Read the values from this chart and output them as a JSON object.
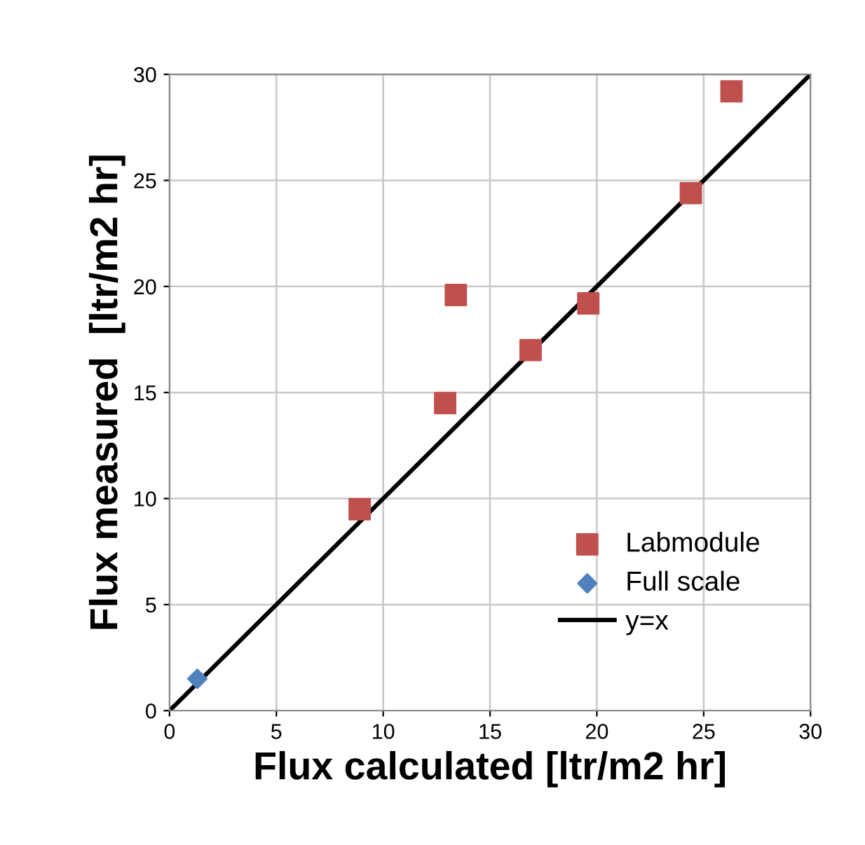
{
  "chart_data": {
    "type": "scatter",
    "xlabel": "Flux calculated [ltr/m2 hr]",
    "ylabel": "Flux measured  [ltr/m2 hr]",
    "xlim": [
      0,
      30
    ],
    "ylim": [
      0,
      30
    ],
    "xticks": [
      0,
      5,
      10,
      15,
      20,
      25,
      30
    ],
    "yticks": [
      0,
      5,
      10,
      15,
      20,
      25,
      30
    ],
    "grid": true,
    "legend": "bottom right",
    "series": [
      {
        "name": "Labmodule",
        "marker": "square",
        "color": "#c0504d",
        "x": [
          8.9,
          12.9,
          13.4,
          16.9,
          19.6,
          24.4,
          26.3
        ],
        "values": [
          9.5,
          14.5,
          19.6,
          17.0,
          19.2,
          24.4,
          29.2
        ]
      },
      {
        "name": "Full scale",
        "marker": "diamond",
        "color": "#4f81bd",
        "x": [
          1.3
        ],
        "values": [
          1.5
        ]
      },
      {
        "name": "y=x",
        "type": "line",
        "marker": "none",
        "line_style": "solid",
        "color": "#000000",
        "x": [
          0,
          30
        ],
        "values": [
          0,
          30
        ]
      }
    ]
  }
}
